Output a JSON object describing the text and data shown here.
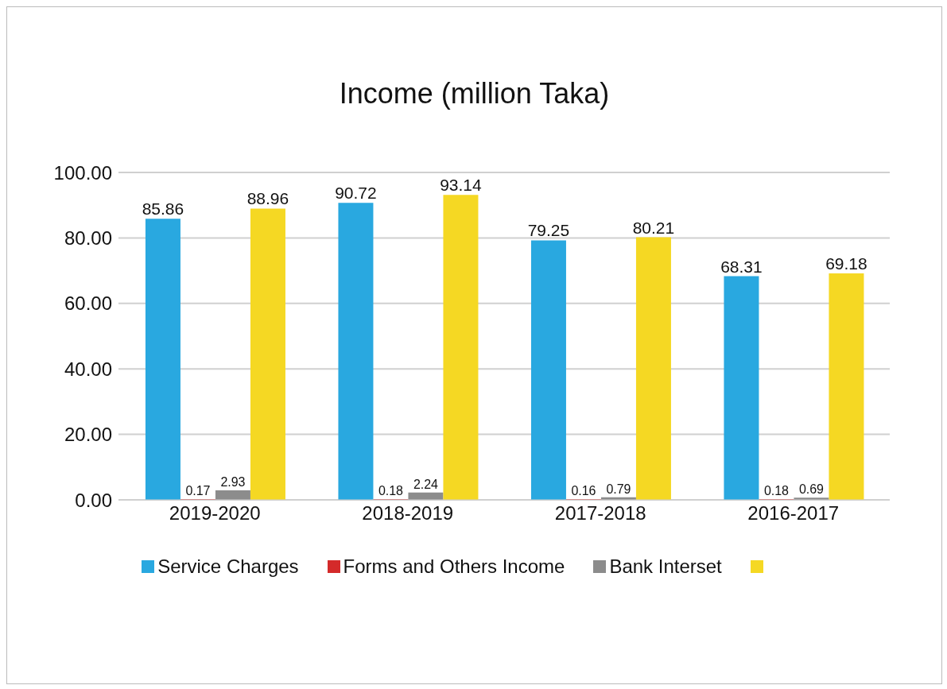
{
  "chart_data": {
    "type": "bar",
    "title": "Income (million Taka)",
    "categories": [
      "2019-2020",
      "2018-2019",
      "2017-2018",
      "2016-2017"
    ],
    "series": [
      {
        "name": "Service Charges",
        "color": "#29a8e0",
        "values": [
          85.86,
          90.72,
          79.25,
          68.31
        ]
      },
      {
        "name": "Forms and Others Income",
        "color": "#d42a2a",
        "values": [
          0.17,
          0.18,
          0.16,
          0.18
        ]
      },
      {
        "name": "Bank Interset",
        "color": "#8c8c8c",
        "values": [
          2.93,
          2.24,
          0.79,
          0.69
        ]
      },
      {
        "color": "#f5d823",
        "values": [
          88.96,
          93.14,
          80.21,
          69.18
        ]
      }
    ],
    "ylim": [
      0,
      100
    ],
    "yticks": [
      {
        "value": 0,
        "label": "0.00"
      },
      {
        "value": 20,
        "label": "20.00"
      },
      {
        "value": 40,
        "label": "40.00"
      },
      {
        "value": 60,
        "label": "60.00"
      },
      {
        "value": 80,
        "label": "80.00"
      },
      {
        "value": 100,
        "label": "100.00"
      }
    ],
    "grid": "y",
    "legend": "bottom",
    "data_labels": true
  }
}
